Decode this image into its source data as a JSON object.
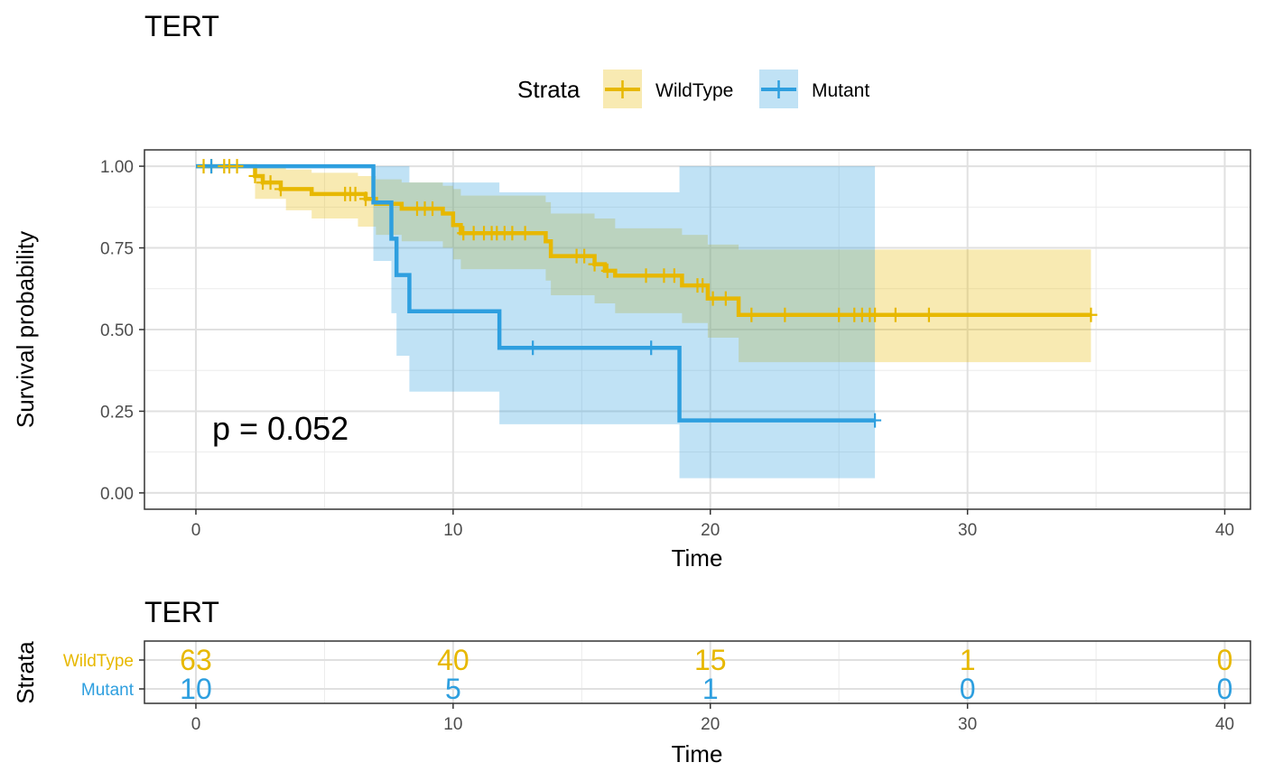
{
  "chart_data": [
    {
      "type": "line",
      "subtype": "kaplan-meier",
      "title": "TERT",
      "xlabel": "Time",
      "ylabel": "Survival probability",
      "xlim": [
        -2,
        41
      ],
      "ylim": [
        -0.05,
        1.05
      ],
      "xticks": [
        0,
        10,
        20,
        30,
        40
      ],
      "yticks": [
        0,
        0.25,
        0.5,
        0.75,
        1
      ],
      "ytick_labels": [
        "0.00",
        "0.25",
        "0.50",
        "0.75",
        "1.00"
      ],
      "grid": true,
      "legend": {
        "title": "Strata",
        "placement": "top"
      },
      "annotation": "p = 0.052",
      "series": [
        {
          "name": "WildType",
          "color": "#E7B800",
          "steps": [
            [
              0,
              1.0
            ],
            [
              2.3,
              0.97
            ],
            [
              2.6,
              0.95
            ],
            [
              3.3,
              0.93
            ],
            [
              4.5,
              0.915
            ],
            [
              6.6,
              0.9
            ],
            [
              7.0,
              0.885
            ],
            [
              8.0,
              0.87
            ],
            [
              9.6,
              0.855
            ],
            [
              10.0,
              0.82
            ],
            [
              10.3,
              0.795
            ],
            [
              13.6,
              0.77
            ],
            [
              13.8,
              0.725
            ],
            [
              15.5,
              0.7
            ],
            [
              15.9,
              0.68
            ],
            [
              16.3,
              0.665
            ],
            [
              18.9,
              0.635
            ],
            [
              19.9,
              0.595
            ],
            [
              21.1,
              0.545
            ],
            [
              34.8,
              0.545
            ]
          ],
          "ci_steps": [
            [
              0,
              1.0,
              1.0
            ],
            [
              2.3,
              0.9,
              1.0
            ],
            [
              3.5,
              0.865,
              0.99
            ],
            [
              4.5,
              0.84,
              0.98
            ],
            [
              6.3,
              0.815,
              0.97
            ],
            [
              7.0,
              0.79,
              0.96
            ],
            [
              8.0,
              0.77,
              0.95
            ],
            [
              9.6,
              0.75,
              0.94
            ],
            [
              10.0,
              0.715,
              0.93
            ],
            [
              10.3,
              0.685,
              0.91
            ],
            [
              13.6,
              0.65,
              0.89
            ],
            [
              13.8,
              0.605,
              0.855
            ],
            [
              15.5,
              0.58,
              0.84
            ],
            [
              16.3,
              0.55,
              0.81
            ],
            [
              18.9,
              0.52,
              0.79
            ],
            [
              19.9,
              0.475,
              0.76
            ],
            [
              21.1,
              0.4,
              0.745
            ],
            [
              34.8,
              0.4,
              0.745
            ]
          ],
          "censored": [
            0.3,
            0.6,
            1.1,
            1.3,
            1.6,
            2.3,
            2.6,
            2.9,
            3.3,
            5.8,
            6.0,
            6.2,
            6.6,
            8.6,
            8.9,
            9.2,
            10.4,
            10.8,
            11.2,
            11.5,
            11.7,
            12.0,
            12.3,
            12.8,
            14.8,
            15.1,
            15.5,
            16.0,
            17.5,
            18.2,
            18.6,
            19.5,
            19.7,
            20.1,
            20.6,
            21.6,
            22.9,
            25.0,
            25.6,
            25.9,
            26.2,
            26.4,
            27.2,
            28.5,
            34.8
          ],
          "at_risk": [
            63,
            40,
            15,
            1,
            0
          ]
        },
        {
          "name": "Mutant",
          "color": "#2E9FDF",
          "steps": [
            [
              0,
              1.0
            ],
            [
              6.9,
              0.889
            ],
            [
              7.6,
              0.778
            ],
            [
              7.8,
              0.667
            ],
            [
              8.3,
              0.556
            ],
            [
              11.8,
              0.444
            ],
            [
              18.8,
              0.222
            ],
            [
              26.4,
              0.222
            ]
          ],
          "ci_steps": [
            [
              0,
              1.0,
              1.0
            ],
            [
              6.9,
              0.71,
              1.0
            ],
            [
              7.6,
              0.55,
              1.0
            ],
            [
              7.8,
              0.42,
              1.0
            ],
            [
              8.3,
              0.31,
              0.95
            ],
            [
              11.8,
              0.21,
              0.92
            ],
            [
              18.8,
              0.045,
              1.0
            ],
            [
              26.4,
              0.045,
              1.0
            ]
          ],
          "censored": [
            0.6,
            13.1,
            17.7,
            26.4
          ],
          "at_risk": [
            10,
            5,
            1,
            0,
            0
          ]
        }
      ]
    },
    {
      "type": "table",
      "title": "TERT",
      "xlabel": "Time",
      "ylabel": "Strata",
      "xticks": [
        0,
        10,
        20,
        30,
        40
      ],
      "rows": [
        {
          "name": "WildType",
          "color": "#E7B800",
          "values": [
            63,
            40,
            15,
            1,
            0
          ]
        },
        {
          "name": "Mutant",
          "color": "#2E9FDF",
          "values": [
            10,
            5,
            1,
            0,
            0
          ]
        }
      ]
    }
  ]
}
